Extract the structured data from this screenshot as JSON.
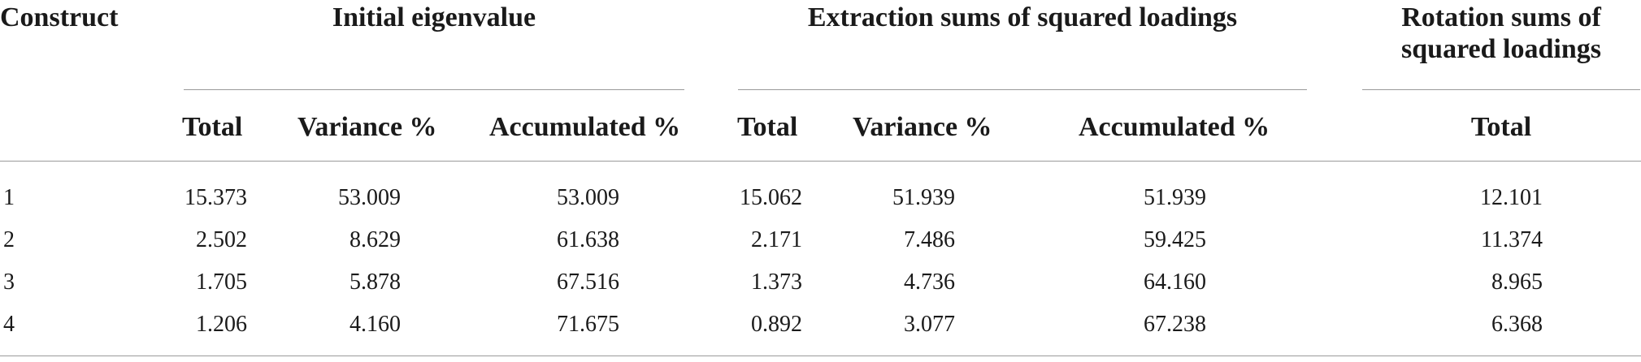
{
  "table": {
    "header": {
      "construct": "Construct",
      "group_initial": "Initial eigenvalue",
      "group_extraction": "Extraction sums of squared loadings",
      "group_rotation": "Rotation sums of squared loadings",
      "sub": {
        "initial_total": "Total",
        "initial_variance": "Variance %",
        "initial_accumulated": "Accumulated %",
        "extraction_total": "Total",
        "extraction_variance": "Variance %",
        "extraction_accumulated": "Accumulated %",
        "rotation_total": "Total"
      }
    },
    "rows": [
      {
        "construct": "1",
        "init_total": "15.373",
        "init_var": "53.009",
        "init_acc": "53.009",
        "ext_total": "15.062",
        "ext_var": "51.939",
        "ext_acc": "51.939",
        "rot_total": "12.101"
      },
      {
        "construct": "2",
        "init_total": "2.502",
        "init_var": "8.629",
        "init_acc": "61.638",
        "ext_total": "2.171",
        "ext_var": "7.486",
        "ext_acc": "59.425",
        "rot_total": "11.374"
      },
      {
        "construct": "3",
        "init_total": "1.705",
        "init_var": "5.878",
        "init_acc": "67.516",
        "ext_total": "1.373",
        "ext_var": "4.736",
        "ext_acc": "64.160",
        "rot_total": "8.965"
      },
      {
        "construct": "4",
        "init_total": "1.206",
        "init_var": "4.160",
        "init_acc": "71.675",
        "ext_total": "0.892",
        "ext_var": "3.077",
        "ext_acc": "67.238",
        "rot_total": "6.368"
      }
    ]
  }
}
